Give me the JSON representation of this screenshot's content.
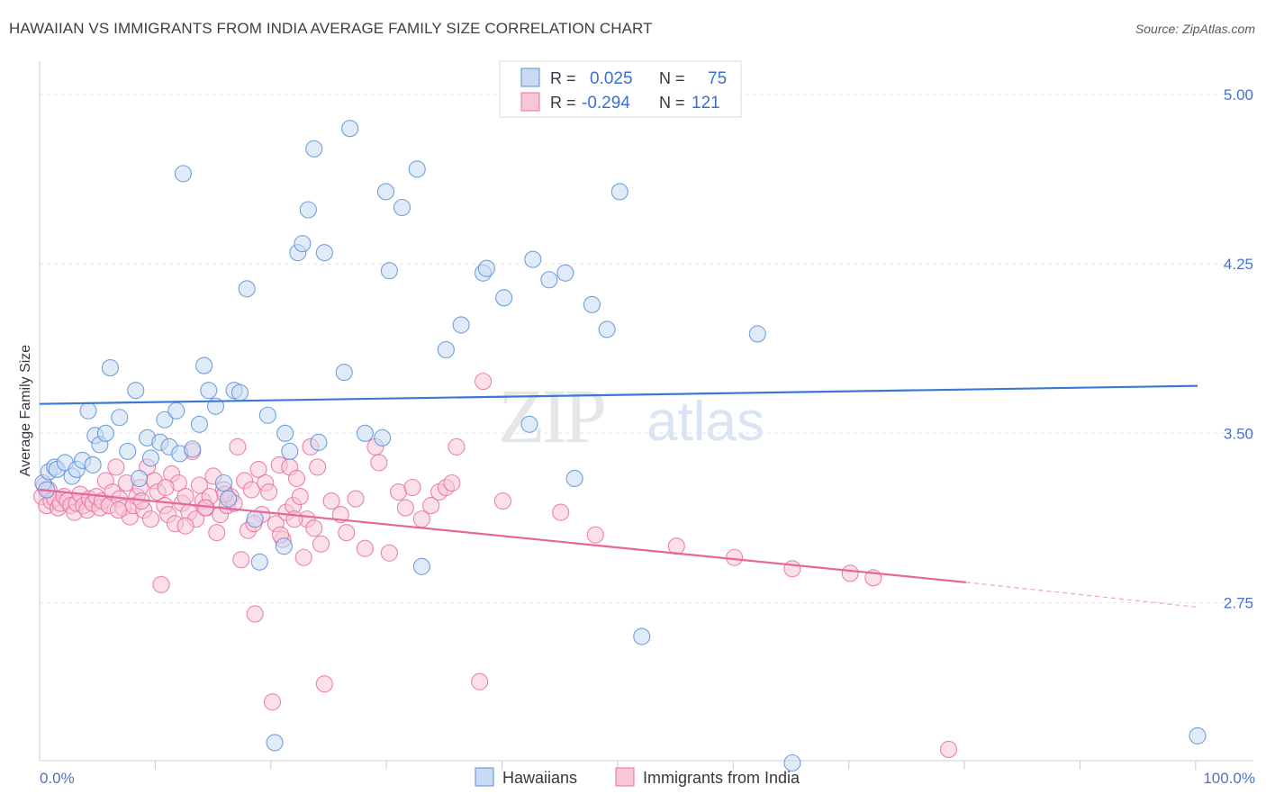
{
  "title": "HAWAIIAN VS IMMIGRANTS FROM INDIA AVERAGE FAMILY SIZE CORRELATION CHART",
  "source": "Source: ZipAtlas.com",
  "watermark": {
    "zip": "ZIP",
    "atlas": "atlas"
  },
  "legend_top": [
    {
      "r_label": "R =",
      "r_value": "0.025",
      "n_label": "N =",
      "n_value": "75"
    },
    {
      "r_label": "R =",
      "r_value": "-0.294",
      "n_label": "N =",
      "n_value": "121"
    }
  ],
  "legend_bottom": [
    "Hawaiians",
    "Immigrants from India"
  ],
  "colors": {
    "blue": "#5b8fd8",
    "blue_fill": "#c9daf3",
    "pink": "#e8709a",
    "pink_fill": "#f7c7d8",
    "tick_text": "#4a72c8",
    "grid": "#e3e6ea"
  },
  "chart_data": {
    "type": "scatter",
    "title": "HAWAIIAN VS IMMIGRANTS FROM INDIA AVERAGE FAMILY SIZE CORRELATION CHART",
    "xlabel": "",
    "ylabel": "Average Family Size",
    "xlim": [
      0,
      100
    ],
    "ylim": [
      2.05,
      5.1
    ],
    "x_tick_labels": [
      "0.0%",
      "100.0%"
    ],
    "y_ticks": [
      2.75,
      3.5,
      4.25,
      5.0
    ],
    "y_tick_labels": [
      "2.75",
      "3.50",
      "4.25",
      "5.00"
    ],
    "grid": true,
    "legend_position": "top-center",
    "series": [
      {
        "name": "Hawaiians",
        "r": 0.025,
        "n": 75,
        "trend": {
          "x": [
            0,
            100
          ],
          "y": [
            3.63,
            3.71
          ]
        },
        "points": [
          [
            0.3,
            3.28
          ],
          [
            0.6,
            3.25
          ],
          [
            0.8,
            3.33
          ],
          [
            1.3,
            3.35
          ],
          [
            1.5,
            3.34
          ],
          [
            2.2,
            3.37
          ],
          [
            2.8,
            3.31
          ],
          [
            3.2,
            3.34
          ],
          [
            3.7,
            3.38
          ],
          [
            4.2,
            3.6
          ],
          [
            4.6,
            3.36
          ],
          [
            4.8,
            3.49
          ],
          [
            5.2,
            3.45
          ],
          [
            5.7,
            3.5
          ],
          [
            6.1,
            3.79
          ],
          [
            6.9,
            3.57
          ],
          [
            7.6,
            3.42
          ],
          [
            8.3,
            3.69
          ],
          [
            8.6,
            3.3
          ],
          [
            9.3,
            3.48
          ],
          [
            9.6,
            3.39
          ],
          [
            10.4,
            3.46
          ],
          [
            10.8,
            3.56
          ],
          [
            11.2,
            3.44
          ],
          [
            11.8,
            3.6
          ],
          [
            12.1,
            3.41
          ],
          [
            12.4,
            4.65
          ],
          [
            13.2,
            3.43
          ],
          [
            13.8,
            3.54
          ],
          [
            14.2,
            3.8
          ],
          [
            14.6,
            3.69
          ],
          [
            15.2,
            3.62
          ],
          [
            15.9,
            3.28
          ],
          [
            16.3,
            3.21
          ],
          [
            16.8,
            3.69
          ],
          [
            17.3,
            3.68
          ],
          [
            17.9,
            4.14
          ],
          [
            18.6,
            3.12
          ],
          [
            19.0,
            2.93
          ],
          [
            19.7,
            3.58
          ],
          [
            20.3,
            2.13
          ],
          [
            21.1,
            3.0
          ],
          [
            21.2,
            3.5
          ],
          [
            21.6,
            3.42
          ],
          [
            22.3,
            4.3
          ],
          [
            22.7,
            4.34
          ],
          [
            23.2,
            4.49
          ],
          [
            23.7,
            4.76
          ],
          [
            24.1,
            3.46
          ],
          [
            24.6,
            4.3
          ],
          [
            26.3,
            3.77
          ],
          [
            26.8,
            4.85
          ],
          [
            28.1,
            3.5
          ],
          [
            29.6,
            3.48
          ],
          [
            29.9,
            4.57
          ],
          [
            30.2,
            4.22
          ],
          [
            31.3,
            4.5
          ],
          [
            32.6,
            4.67
          ],
          [
            33.0,
            2.91
          ],
          [
            35.1,
            3.87
          ],
          [
            36.4,
            3.98
          ],
          [
            38.3,
            4.21
          ],
          [
            38.6,
            4.23
          ],
          [
            40.1,
            4.1
          ],
          [
            42.3,
            3.54
          ],
          [
            42.6,
            4.27
          ],
          [
            44.0,
            4.18
          ],
          [
            45.4,
            4.21
          ],
          [
            46.2,
            3.3
          ],
          [
            47.7,
            4.07
          ],
          [
            49.0,
            3.96
          ],
          [
            50.1,
            4.57
          ],
          [
            52.0,
            2.6
          ],
          [
            62.0,
            3.94
          ],
          [
            65.0,
            2.04
          ],
          [
            100,
            2.16
          ]
        ]
      },
      {
        "name": "Immigrants from India",
        "r": -0.294,
        "n": 121,
        "trend": {
          "x": [
            0,
            80,
            100
          ],
          "y": [
            3.25,
            2.84,
            2.73
          ],
          "solid_until_x": 80
        },
        "points": [
          [
            0.2,
            3.22
          ],
          [
            0.4,
            3.27
          ],
          [
            0.6,
            3.18
          ],
          [
            0.8,
            3.25
          ],
          [
            1.0,
            3.2
          ],
          [
            1.3,
            3.21
          ],
          [
            1.6,
            3.17
          ],
          [
            1.8,
            3.19
          ],
          [
            2.1,
            3.22
          ],
          [
            2.4,
            3.2
          ],
          [
            2.7,
            3.18
          ],
          [
            3.0,
            3.15
          ],
          [
            3.2,
            3.19
          ],
          [
            3.5,
            3.23
          ],
          [
            3.8,
            3.18
          ],
          [
            4.1,
            3.16
          ],
          [
            4.3,
            3.21
          ],
          [
            4.6,
            3.19
          ],
          [
            4.9,
            3.22
          ],
          [
            5.2,
            3.17
          ],
          [
            5.4,
            3.2
          ],
          [
            5.7,
            3.29
          ],
          [
            6.0,
            3.18
          ],
          [
            6.3,
            3.24
          ],
          [
            6.6,
            3.35
          ],
          [
            6.9,
            3.21
          ],
          [
            7.2,
            3.17
          ],
          [
            7.5,
            3.28
          ],
          [
            7.8,
            3.13
          ],
          [
            8.1,
            3.18
          ],
          [
            8.4,
            3.22
          ],
          [
            8.7,
            3.26
          ],
          [
            9.0,
            3.16
          ],
          [
            9.3,
            3.35
          ],
          [
            9.6,
            3.12
          ],
          [
            9.9,
            3.29
          ],
          [
            10.2,
            3.24
          ],
          [
            10.5,
            2.83
          ],
          [
            10.8,
            3.18
          ],
          [
            11.1,
            3.14
          ],
          [
            11.4,
            3.32
          ],
          [
            11.7,
            3.1
          ],
          [
            12.0,
            3.28
          ],
          [
            12.3,
            3.19
          ],
          [
            12.6,
            3.22
          ],
          [
            12.9,
            3.15
          ],
          [
            13.2,
            3.42
          ],
          [
            13.5,
            3.12
          ],
          [
            13.8,
            3.27
          ],
          [
            14.1,
            3.2
          ],
          [
            14.4,
            3.17
          ],
          [
            14.7,
            3.22
          ],
          [
            15.0,
            3.31
          ],
          [
            15.3,
            3.06
          ],
          [
            15.6,
            3.14
          ],
          [
            15.9,
            3.25
          ],
          [
            16.2,
            3.18
          ],
          [
            16.5,
            3.22
          ],
          [
            16.8,
            3.19
          ],
          [
            17.1,
            3.44
          ],
          [
            17.4,
            2.94
          ],
          [
            17.7,
            3.29
          ],
          [
            18.0,
            3.07
          ],
          [
            18.3,
            3.25
          ],
          [
            18.6,
            2.7
          ],
          [
            18.9,
            3.34
          ],
          [
            19.2,
            3.14
          ],
          [
            19.5,
            3.28
          ],
          [
            19.8,
            3.24
          ],
          [
            20.1,
            2.31
          ],
          [
            20.4,
            3.1
          ],
          [
            20.7,
            3.36
          ],
          [
            21.0,
            3.03
          ],
          [
            21.3,
            3.15
          ],
          [
            21.6,
            3.35
          ],
          [
            21.9,
            3.18
          ],
          [
            22.2,
            3.3
          ],
          [
            22.5,
            3.22
          ],
          [
            22.8,
            2.95
          ],
          [
            23.1,
            3.12
          ],
          [
            23.4,
            3.44
          ],
          [
            23.7,
            3.08
          ],
          [
            24.0,
            3.35
          ],
          [
            24.3,
            3.01
          ],
          [
            24.6,
            2.39
          ],
          [
            25.2,
            3.2
          ],
          [
            26.0,
            3.14
          ],
          [
            26.5,
            3.06
          ],
          [
            27.3,
            3.21
          ],
          [
            28.1,
            2.99
          ],
          [
            29.0,
            3.44
          ],
          [
            29.3,
            3.37
          ],
          [
            30.2,
            2.97
          ],
          [
            31.0,
            3.24
          ],
          [
            31.6,
            3.17
          ],
          [
            32.2,
            3.26
          ],
          [
            33.0,
            3.12
          ],
          [
            33.8,
            3.18
          ],
          [
            34.5,
            3.24
          ],
          [
            35.1,
            3.26
          ],
          [
            35.6,
            3.28
          ],
          [
            36.0,
            3.44
          ],
          [
            38.0,
            2.4
          ],
          [
            38.3,
            3.73
          ],
          [
            40.0,
            3.2
          ],
          [
            45.0,
            3.15
          ],
          [
            48.0,
            3.05
          ],
          [
            55.0,
            3.0
          ],
          [
            60.0,
            2.95
          ],
          [
            65.0,
            2.9
          ],
          [
            70.0,
            2.88
          ],
          [
            72.0,
            2.86
          ],
          [
            78.5,
            2.1
          ],
          [
            12.6,
            3.09
          ],
          [
            14.3,
            3.17
          ],
          [
            16.0,
            3.23
          ],
          [
            18.5,
            3.1
          ],
          [
            20.8,
            3.05
          ],
          [
            22.0,
            3.12
          ],
          [
            8.8,
            3.2
          ],
          [
            6.8,
            3.16
          ],
          [
            10.9,
            3.26
          ]
        ]
      }
    ]
  }
}
